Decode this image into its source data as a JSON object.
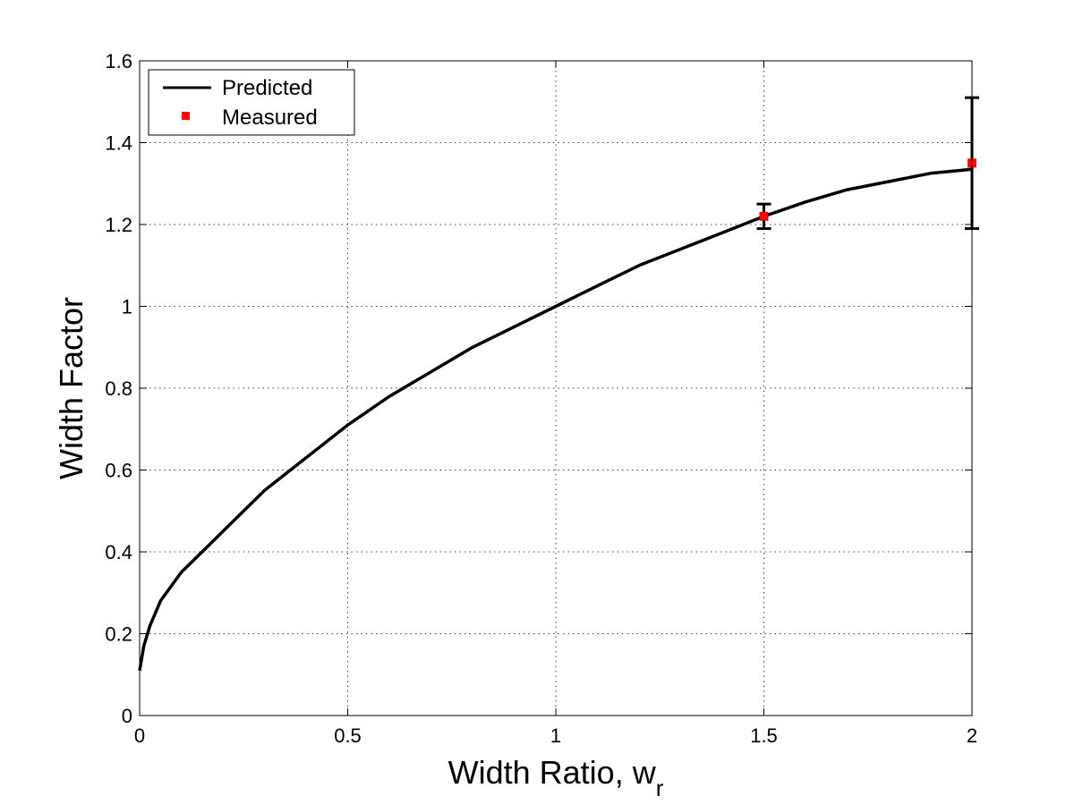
{
  "chart_data": {
    "type": "line",
    "title": "",
    "xlabel_main": "Width Ratio, w",
    "xlabel_sub": "r",
    "ylabel": "Width Factor",
    "xlim": [
      0,
      2
    ],
    "ylim": [
      0,
      1.6
    ],
    "xticks": [
      0,
      0.5,
      1,
      1.5,
      2
    ],
    "xtick_labels": [
      "0",
      "0.5",
      "1",
      "1.5",
      "2"
    ],
    "yticks": [
      0,
      0.2,
      0.4,
      0.6,
      0.8,
      1,
      1.2,
      1.4,
      1.6
    ],
    "ytick_labels": [
      "0",
      "0.2",
      "0.4",
      "0.6",
      "0.8",
      "1",
      "1.2",
      "1.4",
      "1.6"
    ],
    "grid": true,
    "legend_position": "top-left",
    "series": [
      {
        "name": "Predicted",
        "style": "line",
        "color": "#000000",
        "x": [
          0,
          0.01,
          0.025,
          0.05,
          0.1,
          0.15,
          0.2,
          0.3,
          0.4,
          0.5,
          0.6,
          0.7,
          0.8,
          0.9,
          1.0,
          1.1,
          1.2,
          1.3,
          1.4,
          1.5,
          1.6,
          1.7,
          1.8,
          1.9,
          2.0
        ],
        "y": [
          0.11,
          0.17,
          0.22,
          0.28,
          0.35,
          0.4,
          0.45,
          0.55,
          0.63,
          0.71,
          0.78,
          0.84,
          0.9,
          0.95,
          1.0,
          1.05,
          1.1,
          1.14,
          1.18,
          1.22,
          1.255,
          1.285,
          1.305,
          1.325,
          1.335
        ]
      },
      {
        "name": "Measured",
        "style": "marker",
        "color": "#ff0000",
        "x": [
          1.5,
          2.0
        ],
        "y": [
          1.22,
          1.35
        ],
        "err_low": [
          1.19,
          1.19
        ],
        "err_high": [
          1.25,
          1.51
        ]
      }
    ]
  }
}
